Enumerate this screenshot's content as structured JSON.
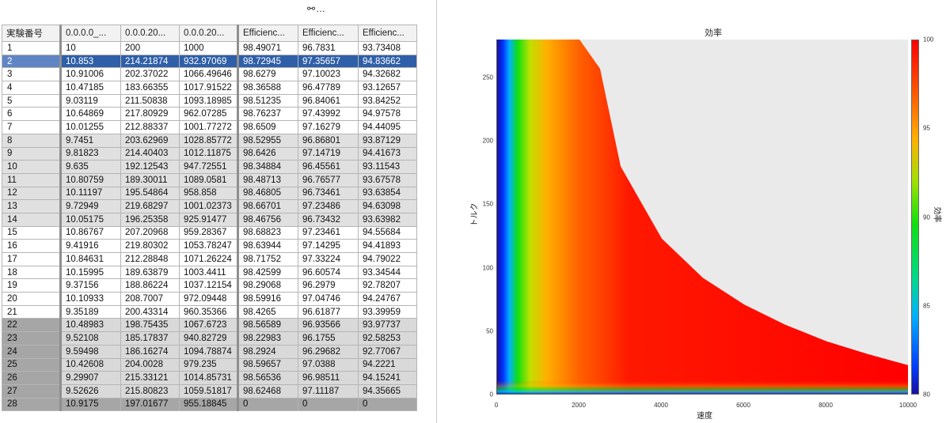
{
  "left_panel": {
    "title": "⚯…"
  },
  "table": {
    "headers": [
      "実験番号",
      "0.0.0.0_...",
      "0.0.0.20...",
      "0.0.0.20...",
      "Efficienc...",
      "Efficienc...",
      "Efficienc..."
    ],
    "rows": [
      [
        "1",
        "10",
        "200",
        "1000",
        "98.49071",
        "96.7831",
        "93.73408"
      ],
      [
        "2",
        "10.853",
        "214.21874",
        "932.97069",
        "98.72945",
        "97.35657",
        "94.83662"
      ],
      [
        "3",
        "10.91006",
        "202.37022",
        "1066.49646",
        "98.6279",
        "97.10023",
        "94.32682"
      ],
      [
        "4",
        "10.47185",
        "183.66355",
        "1017.91522",
        "98.36588",
        "96.47789",
        "93.12657"
      ],
      [
        "5",
        "9.03119",
        "211.50838",
        "1093.18985",
        "98.51235",
        "96.84061",
        "93.84252"
      ],
      [
        "6",
        "10.64869",
        "217.80929",
        "962.07285",
        "98.76237",
        "97.43992",
        "94.97578"
      ],
      [
        "7",
        "10.01255",
        "212.88337",
        "1001.77272",
        "98.6509",
        "97.16279",
        "94.44095"
      ],
      [
        "8",
        "9.7451",
        "203.62969",
        "1028.85772",
        "98.52955",
        "96.86801",
        "93.87129"
      ],
      [
        "9",
        "9.81823",
        "214.40403",
        "1012.11875",
        "98.6426",
        "97.14719",
        "94.41673"
      ],
      [
        "10",
        "9.635",
        "192.12543",
        "947.72551",
        "98.34884",
        "96.45561",
        "93.11543"
      ],
      [
        "11",
        "10.80759",
        "189.30011",
        "1089.0581",
        "98.48713",
        "96.76577",
        "93.67578"
      ],
      [
        "12",
        "10.11197",
        "195.54864",
        "958.858",
        "98.46805",
        "96.73461",
        "93.63854"
      ],
      [
        "13",
        "9.72949",
        "219.68297",
        "1001.02373",
        "98.66701",
        "97.23486",
        "94.63098"
      ],
      [
        "14",
        "10.05175",
        "196.25358",
        "925.91477",
        "98.46756",
        "96.73432",
        "93.63982"
      ],
      [
        "15",
        "10.86767",
        "207.20968",
        "959.28367",
        "98.68823",
        "97.23461",
        "94.55684"
      ],
      [
        "16",
        "9.41916",
        "219.80302",
        "1053.78247",
        "98.63944",
        "97.14295",
        "94.41893"
      ],
      [
        "17",
        "10.84631",
        "212.28848",
        "1071.26224",
        "98.71752",
        "97.33224",
        "94.79022"
      ],
      [
        "18",
        "10.15995",
        "189.63879",
        "1003.4411",
        "98.42599",
        "96.60574",
        "93.34544"
      ],
      [
        "19",
        "9.37156",
        "188.86224",
        "1037.12154",
        "98.29068",
        "96.2979",
        "92.78207"
      ],
      [
        "20",
        "10.10933",
        "208.7007",
        "972.09448",
        "98.59916",
        "97.04746",
        "94.24767"
      ],
      [
        "21",
        "9.35189",
        "200.43314",
        "960.35366",
        "98.4265",
        "96.61877",
        "93.39959"
      ],
      [
        "22",
        "10.48983",
        "198.75435",
        "1067.6723",
        "98.56589",
        "96.93566",
        "93.97737"
      ],
      [
        "23",
        "9.52108",
        "185.17837",
        "940.82729",
        "98.22983",
        "96.1755",
        "92.58253"
      ],
      [
        "24",
        "9.59498",
        "186.16274",
        "1094.78874",
        "98.2924",
        "96.29682",
        "92.77067"
      ],
      [
        "25",
        "10.42608",
        "204.0028",
        "979.235",
        "98.59657",
        "97.0388",
        "94.2221"
      ],
      [
        "26",
        "9.29907",
        "215.33121",
        "1014.85731",
        "98.56536",
        "96.98511",
        "94.15241"
      ],
      [
        "27",
        "9.52626",
        "215.80823",
        "1059.51817",
        "98.62468",
        "97.11187",
        "94.35665"
      ],
      [
        "28",
        "10.9175",
        "197.01677",
        "955.18845",
        "0",
        "0",
        "0"
      ]
    ]
  },
  "right_panel": {
    "title": "…⚯"
  },
  "chart_data": {
    "type": "heatmap",
    "title": "効率",
    "xlabel": "速度",
    "ylabel": "トルク",
    "colorbar_label": "効率",
    "xlim": [
      0,
      10000
    ],
    "ylim": [
      0,
      280
    ],
    "x_ticks": [
      0,
      2000,
      4000,
      6000,
      8000,
      10000
    ],
    "y_ticks": [
      0,
      50,
      100,
      150,
      200,
      250
    ],
    "colorbar_range": [
      80,
      100
    ],
    "colorbar_ticks": [
      80,
      85,
      90,
      95,
      100
    ],
    "boundary": {
      "x": [
        0,
        2000,
        2500,
        3000,
        4000,
        5000,
        6000,
        7000,
        8000,
        9000,
        10000
      ],
      "y": [
        280,
        280,
        257,
        180,
        123,
        92,
        71,
        55,
        42,
        32,
        23
      ]
    },
    "outside_color": "#eaeaea",
    "colors": [
      "#1a10a0",
      "#0040ff",
      "#00c0ff",
      "#10e010",
      "#ffb000",
      "#ff0000"
    ]
  }
}
